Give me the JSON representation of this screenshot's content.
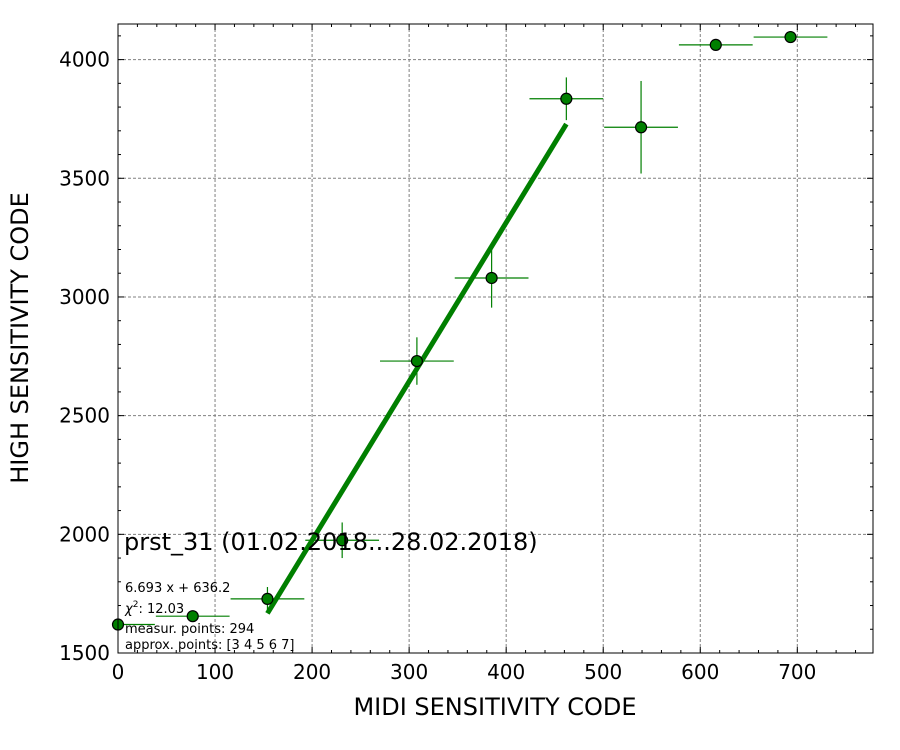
{
  "chart_data": {
    "type": "scatter",
    "title": "prst_31 (01.02.2018...28.02.2018)",
    "xlabel": "MIDI SENSITIVITY CODE",
    "ylabel": "HIGH SENSITIVITY CODE",
    "xlim": [
      0,
      778
    ],
    "ylim": [
      1500,
      4150
    ],
    "xticks": [
      0,
      100,
      200,
      300,
      400,
      500,
      600,
      700
    ],
    "yticks": [
      1500,
      2000,
      2500,
      3000,
      3500,
      4000
    ],
    "grid": true,
    "color": "#007f00",
    "marker_fill": "#008000",
    "points": [
      {
        "x": 0,
        "y": 1620,
        "xerr": 38,
        "yerr": 0
      },
      {
        "x": 77,
        "y": 1655,
        "xerr": 38,
        "yerr": 0
      },
      {
        "x": 154,
        "y": 1728,
        "xerr": 38,
        "yerr": 50
      },
      {
        "x": 231,
        "y": 1975,
        "xerr": 38,
        "yerr": 75
      },
      {
        "x": 308,
        "y": 2730,
        "xerr": 38,
        "yerr": 100
      },
      {
        "x": 385,
        "y": 3080,
        "xerr": 38,
        "yerr": 125
      },
      {
        "x": 462,
        "y": 3835,
        "xerr": 38,
        "yerr": 90
      },
      {
        "x": 539,
        "y": 3715,
        "xerr": 38,
        "yerr": 195
      },
      {
        "x": 616,
        "y": 4062,
        "xerr": 38,
        "yerr": 0
      },
      {
        "x": 693,
        "y": 4095,
        "xerr": 38,
        "yerr": 0
      }
    ],
    "fit": {
      "slope": 6.693,
      "intercept": 636.2,
      "x_range": [
        154,
        462
      ]
    },
    "annotations": {
      "equation": "6.693 x + 636.2",
      "chi2_label": "χ",
      "chi2_exp": "2",
      "chi2_value": ": 12.03",
      "measured": "measur. points: 294",
      "approx": "approx. points: [3 4 5 6 7]"
    }
  }
}
